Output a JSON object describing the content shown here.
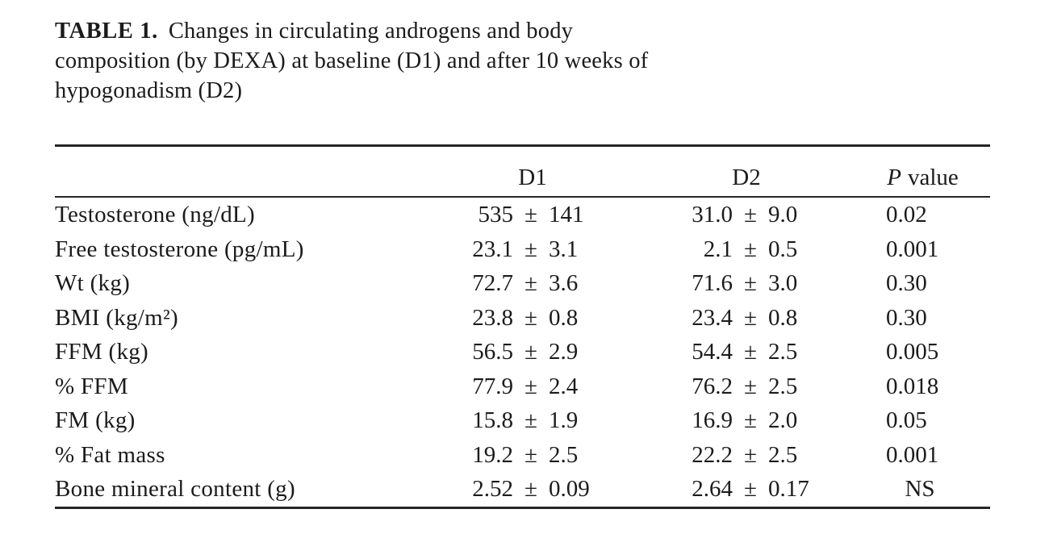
{
  "title": {
    "label": "TABLE 1.",
    "lines": [
      "Changes in circulating androgens and body",
      "composition (by DEXA) at baseline (D1) and after 10 weeks of",
      "hypogonadism (D2)"
    ]
  },
  "table": {
    "pm": "±",
    "columns": {
      "d1": "D1",
      "d2": "D2",
      "p_prefix": "P",
      "p_suffix": "value"
    },
    "rows": [
      {
        "label": "Testosterone (ng/dL)",
        "d1_mean": "535",
        "d1_sd": "141",
        "d2_mean": "31.0",
        "d2_sd": "9.0",
        "p": "0.02"
      },
      {
        "label": "Free testosterone (pg/mL)",
        "d1_mean": "23.1",
        "d1_sd": "3.1",
        "d2_mean": "2.1",
        "d2_sd": "0.5",
        "p": "0.001"
      },
      {
        "label": "Wt (kg)",
        "d1_mean": "72.7",
        "d1_sd": "3.6",
        "d2_mean": "71.6",
        "d2_sd": "3.0",
        "p": "0.30"
      },
      {
        "label": "BMI (kg/m²)",
        "d1_mean": "23.8",
        "d1_sd": "0.8",
        "d2_mean": "23.4",
        "d2_sd": "0.8",
        "p": "0.30"
      },
      {
        "label": "FFM (kg)",
        "d1_mean": "56.5",
        "d1_sd": "2.9",
        "d2_mean": "54.4",
        "d2_sd": "2.5",
        "p": "0.005"
      },
      {
        "label": "% FFM",
        "d1_mean": "77.9",
        "d1_sd": "2.4",
        "d2_mean": "76.2",
        "d2_sd": "2.5",
        "p": "0.018"
      },
      {
        "label": "FM (kg)",
        "d1_mean": "15.8",
        "d1_sd": "1.9",
        "d2_mean": "16.9",
        "d2_sd": "2.0",
        "p": "0.05"
      },
      {
        "label": "% Fat mass",
        "d1_mean": "19.2",
        "d1_sd": "2.5",
        "d2_mean": "22.2",
        "d2_sd": "2.5",
        "p": "0.001"
      },
      {
        "label": "Bone mineral content (g)",
        "d1_mean": "2.52",
        "d1_sd": "0.09",
        "d2_mean": "2.64",
        "d2_sd": "0.17",
        "p": "NS"
      }
    ]
  },
  "colors": {
    "text": "#1b1b1b",
    "rule": "#262626",
    "background": "#ffffff"
  }
}
